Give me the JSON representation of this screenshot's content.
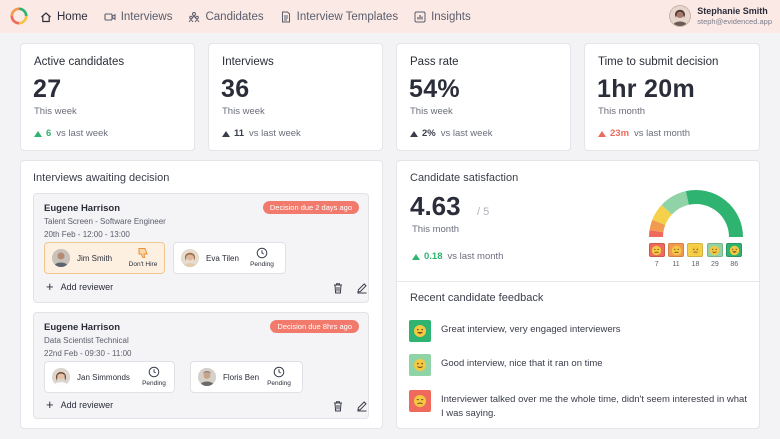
{
  "nav": {
    "items": [
      {
        "label": "Home",
        "icon": "home-icon"
      },
      {
        "label": "Interviews",
        "icon": "video-icon"
      },
      {
        "label": "Candidates",
        "icon": "people-icon"
      },
      {
        "label": "Interview Templates",
        "icon": "document-icon"
      },
      {
        "label": "Insights",
        "icon": "chart-icon"
      }
    ],
    "user": {
      "name": "Stephanie Smith",
      "email": "steph@evidenced.app"
    }
  },
  "stats": [
    {
      "title": "Active candidates",
      "value": "27",
      "period": "This week",
      "delta": "6",
      "compare": "vs last week"
    },
    {
      "title": "Interviews",
      "value": "36",
      "period": "This week",
      "delta": "11",
      "compare": "vs last week"
    },
    {
      "title": "Pass rate",
      "value": "54%",
      "period": "This week",
      "delta": "2%",
      "compare": "vs last week"
    },
    {
      "title": "Time to submit decision",
      "value": "1hr 20m",
      "period": "This month",
      "delta": "23m",
      "compare": "vs last month"
    }
  ],
  "awaiting": {
    "title": "Interviews awaiting decision",
    "add_reviewer_label": "Add reviewer",
    "items": [
      {
        "candidate": "Eugene Harrison",
        "role": "Talent Screen - Software Engineer",
        "date": "20th Feb - 12:00 - 13:00",
        "due": "Decision due 2 days ago",
        "reviewers": [
          {
            "name": "Jim Smith",
            "status": "Don't Hire",
            "icon": "thumbs-down-icon"
          },
          {
            "name": "Eva Tilen",
            "status": "Pending",
            "icon": "clock-icon"
          }
        ]
      },
      {
        "candidate": "Eugene Harrison",
        "role": "Data Scientist Technical",
        "date": "22nd Feb - 09:30 - 11:00",
        "due": "Decision due 8hrs ago",
        "reviewers": [
          {
            "name": "Jan Simmonds",
            "status": "Pending",
            "icon": "clock-icon"
          },
          {
            "name": "Floris Ben",
            "status": "Pending",
            "icon": "clock-icon"
          }
        ]
      }
    ]
  },
  "satisfaction": {
    "title": "Candidate satisfaction",
    "score": "4.63",
    "out_of": "/ 5",
    "period": "This month",
    "delta": "0.18",
    "compare": "vs last month",
    "distribution": [
      {
        "count": "7",
        "color": "#ef6a5c"
      },
      {
        "count": "11",
        "color": "#f39a52"
      },
      {
        "count": "18",
        "color": "#f5d04a"
      },
      {
        "count": "29",
        "color": "#8fd3a7"
      },
      {
        "count": "86",
        "color": "#2fb371"
      }
    ]
  },
  "feedback": {
    "title": "Recent candidate feedback",
    "items": [
      {
        "text": "Great interview, very engaged interviewers",
        "color": "#2fb371"
      },
      {
        "text": "Good interview, nice that it ran on time",
        "color": "#8fd3a7"
      },
      {
        "text": "Interviewer talked over me the whole time, didn't seem interested in what I was saying.",
        "color": "#ef6a5c"
      }
    ]
  },
  "colors": {
    "accent_green": "#2fb371",
    "accent_red": "#ef6a5c",
    "nav_bg": "#fbe9e6"
  }
}
